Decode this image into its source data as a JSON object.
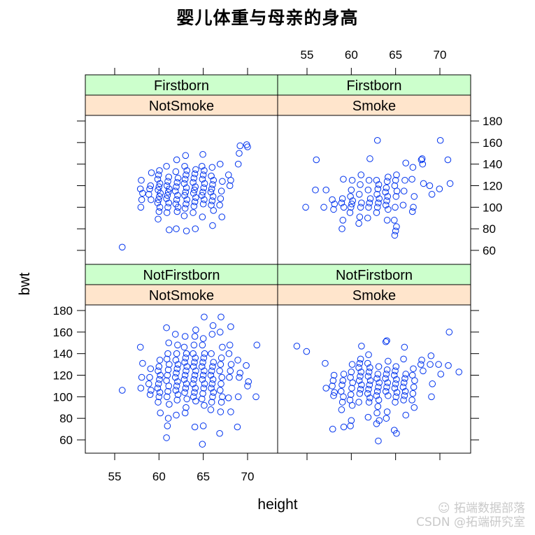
{
  "title": "婴儿体重与母亲的身高",
  "watermark": {
    "line1": "拓端数据部落",
    "line2": "CSDN @拓端研究室",
    "icon": "wechat-icon"
  },
  "colors": {
    "strip_outer": "#ccffcc",
    "strip_inner": "#ffe5cc",
    "points": "#0033ee",
    "frame": "#000000"
  },
  "chart_data": {
    "type": "scatter",
    "title": "婴儿体重与母亲的身高",
    "xlabel": "height",
    "ylabel": "bwt",
    "xlim": [
      52.3,
      74.0
    ],
    "ylim": [
      48,
      186
    ],
    "xticks": [
      55,
      60,
      65,
      70
    ],
    "yticks": [
      60,
      80,
      100,
      120,
      140,
      160,
      180
    ],
    "xtick_labels": [
      "55",
      "60",
      "65",
      "70"
    ],
    "ytick_labels": [
      "60",
      "80",
      "100",
      "120",
      "140",
      "160",
      "180"
    ],
    "grid": false,
    "legend": null,
    "layout": "2x2 lattice (xyplot bwt ~ height | smoke * parity)",
    "panels": [
      {
        "position": "top-left",
        "strips": [
          "Firstborn",
          "NotSmoke"
        ],
        "points_x": [
          56,
          58,
          58,
          58,
          58,
          58,
          59,
          59,
          59,
          59,
          59,
          60,
          60,
          60,
          60,
          60,
          60,
          60,
          60,
          60,
          60,
          60,
          60,
          60,
          61,
          61,
          61,
          61,
          61,
          61,
          61,
          61,
          61,
          61,
          61,
          61,
          62,
          62,
          62,
          62,
          62,
          62,
          62,
          62,
          62,
          62,
          62,
          62,
          63,
          63,
          63,
          63,
          63,
          63,
          63,
          63,
          63,
          63,
          63,
          63,
          63,
          63,
          64,
          64,
          64,
          64,
          64,
          64,
          64,
          64,
          64,
          64,
          64,
          64,
          65,
          65,
          65,
          65,
          65,
          65,
          65,
          65,
          65,
          65,
          65,
          65,
          66,
          66,
          66,
          66,
          66,
          66,
          66,
          66,
          66,
          66,
          66,
          67,
          67,
          67,
          67,
          67,
          67,
          68,
          68,
          68,
          69,
          69,
          69,
          70,
          70
        ],
        "points_y": [
          63,
          100,
          107,
          113,
          117,
          125,
          107,
          112,
          117,
          120,
          132,
          89,
          96,
          100,
          104,
          107,
          110,
          113,
          116,
          119,
          122,
          126,
          130,
          134,
          79,
          95,
          100,
          104,
          108,
          111,
          114,
          117,
          120,
          124,
          128,
          138,
          80,
          96,
          100,
          103,
          107,
          111,
          115,
          119,
          123,
          127,
          133,
          144,
          78,
          92,
          99,
          103,
          107,
          111,
          114,
          118,
          122,
          126,
          130,
          134,
          138,
          148,
          80,
          95,
          101,
          105,
          109,
          113,
          116,
          119,
          123,
          127,
          131,
          135,
          91,
          103,
          107,
          111,
          114,
          118,
          122,
          126,
          130,
          134,
          138,
          149,
          83,
          97,
          102,
          106,
          110,
          114,
          117,
          121,
          125,
          129,
          137,
          91,
          102,
          108,
          115,
          124,
          140,
          120,
          125,
          130,
          140,
          150,
          157,
          158,
          156
        ],
        "note": "approximate values estimated from pixel positions"
      },
      {
        "position": "top-right",
        "strips": [
          "Firstborn",
          "Smoke"
        ],
        "points_x": [
          55,
          56,
          56,
          57,
          57,
          58,
          58,
          58,
          59,
          59,
          59,
          59,
          59,
          59,
          60,
          60,
          60,
          60,
          60,
          60,
          60,
          61,
          61,
          61,
          61,
          61,
          61,
          61,
          62,
          62,
          62,
          62,
          62,
          62,
          62,
          63,
          63,
          63,
          63,
          63,
          63,
          63,
          63,
          63,
          64,
          64,
          64,
          64,
          64,
          64,
          64,
          64,
          64,
          65,
          65,
          65,
          65,
          65,
          65,
          65,
          65,
          65,
          65,
          66,
          66,
          66,
          66,
          67,
          67,
          67,
          67,
          67,
          68,
          68,
          68,
          68,
          69,
          69,
          70,
          70,
          71,
          71
        ],
        "points_y": [
          100,
          116,
          144,
          116,
          100,
          98,
          103,
          107,
          80,
          88,
          100,
          104,
          108,
          126,
          95,
          100,
          103,
          106,
          110,
          116,
          125,
          85,
          91,
          100,
          104,
          112,
          121,
          130,
          90,
          100,
          104,
          108,
          116,
          125,
          145,
          95,
          100,
          104,
          108,
          112,
          117,
          121,
          125,
          162,
          88,
          98,
          102,
          106,
          110,
          114,
          118,
          124,
          128,
          74,
          78,
          82,
          88,
          100,
          110,
          115,
          120,
          125,
          130,
          102,
          115,
          125,
          141,
          96,
          100,
          110,
          126,
          137,
          140,
          122,
          144,
          145,
          112,
          120,
          117,
          162,
          122,
          144
        ],
        "note": "approximate values estimated from pixel positions"
      },
      {
        "position": "bottom-left",
        "strips": [
          "NotFirstborn",
          "NotSmoke"
        ],
        "points_x": [
          56,
          58,
          58,
          58,
          58,
          59,
          59,
          59,
          59,
          59,
          60,
          60,
          60,
          60,
          60,
          60,
          60,
          60,
          60,
          60,
          60,
          61,
          61,
          61,
          61,
          61,
          61,
          61,
          61,
          61,
          61,
          61,
          61,
          61,
          61,
          61,
          62,
          62,
          62,
          62,
          62,
          62,
          62,
          62,
          62,
          62,
          62,
          62,
          62,
          62,
          63,
          63,
          63,
          63,
          63,
          63,
          63,
          63,
          63,
          63,
          63,
          63,
          63,
          63,
          63,
          64,
          64,
          64,
          64,
          64,
          64,
          64,
          64,
          64,
          64,
          64,
          64,
          64,
          64,
          64,
          64,
          65,
          65,
          65,
          65,
          65,
          65,
          65,
          65,
          65,
          65,
          65,
          65,
          65,
          65,
          65,
          65,
          65,
          66,
          66,
          66,
          66,
          66,
          66,
          66,
          66,
          66,
          66,
          66,
          66,
          66,
          66,
          67,
          67,
          67,
          67,
          67,
          67,
          67,
          67,
          67,
          67,
          67,
          67,
          67,
          68,
          68,
          68,
          68,
          68,
          68,
          68,
          68,
          69,
          69,
          69,
          69,
          69,
          70,
          70,
          70,
          71,
          71
        ],
        "points_y": [
          106,
          108,
          118,
          131,
          146,
          102,
          106,
          112,
          118,
          126,
          85,
          95,
          100,
          104,
          108,
          112,
          116,
          120,
          124,
          128,
          134,
          62,
          73,
          80,
          93,
          100,
          105,
          110,
          115,
          120,
          125,
          130,
          135,
          140,
          150,
          164,
          83,
          97,
          102,
          106,
          110,
          114,
          118,
          122,
          126,
          130,
          134,
          140,
          148,
          158,
          85,
          90,
          98,
          104,
          108,
          112,
          116,
          120,
          124,
          128,
          132,
          136,
          140,
          146,
          156,
          72,
          96,
          100,
          104,
          108,
          112,
          116,
          120,
          124,
          128,
          132,
          136,
          140,
          148,
          156,
          162,
          56,
          73,
          92,
          98,
          103,
          108,
          112,
          116,
          120,
          124,
          128,
          132,
          136,
          140,
          148,
          154,
          174,
          88,
          95,
          100,
          104,
          108,
          112,
          116,
          120,
          124,
          128,
          132,
          140,
          158,
          166,
          66,
          86,
          95,
          100,
          106,
          112,
          118,
          124,
          130,
          136,
          146,
          160,
          174,
          86,
          99,
          118,
          124,
          130,
          140,
          148,
          165,
          72,
          100,
          118,
          122,
          134,
          110,
          114,
          129,
          100,
          148
        ],
        "note": "approximate values estimated from pixel positions"
      },
      {
        "position": "bottom-right",
        "strips": [
          "NotFirstborn",
          "Smoke"
        ],
        "points_x": [
          54,
          55,
          57,
          57,
          58,
          58,
          58,
          58,
          58,
          58,
          59,
          59,
          59,
          59,
          59,
          59,
          59,
          59,
          60,
          60,
          60,
          60,
          60,
          60,
          60,
          60,
          60,
          60,
          61,
          61,
          61,
          61,
          61,
          61,
          61,
          61,
          61,
          61,
          61,
          62,
          62,
          62,
          62,
          62,
          62,
          62,
          62,
          62,
          62,
          62,
          62,
          63,
          63,
          63,
          63,
          63,
          63,
          63,
          63,
          63,
          63,
          63,
          63,
          63,
          64,
          64,
          64,
          64,
          64,
          64,
          64,
          64,
          64,
          64,
          64,
          64,
          65,
          65,
          65,
          65,
          65,
          65,
          65,
          65,
          65,
          65,
          65,
          66,
          66,
          66,
          66,
          66,
          66,
          66,
          66,
          66,
          66,
          67,
          67,
          67,
          67,
          67,
          67,
          67,
          68,
          68,
          68,
          69,
          69,
          69,
          69,
          70,
          70,
          71,
          71,
          72
        ],
        "points_y": [
          147,
          142,
          131,
          108,
          70,
          101,
          104,
          110,
          115,
          120,
          72,
          88,
          95,
          100,
          105,
          111,
          115,
          121,
          73,
          78,
          92,
          97,
          102,
          108,
          113,
          118,
          123,
          130,
          95,
          103,
          107,
          111,
          115,
          119,
          123,
          127,
          131,
          135,
          147,
          81,
          95,
          99,
          103,
          107,
          111,
          115,
          119,
          123,
          127,
          131,
          139,
          59,
          78,
          85,
          91,
          97,
          101,
          105,
          109,
          113,
          117,
          121,
          128,
          75,
          80,
          86,
          101,
          105,
          109,
          113,
          117,
          121,
          125,
          133,
          151,
          152,
          66,
          69,
          95,
          100,
          104,
          108,
          112,
          116,
          120,
          124,
          128,
          83,
          97,
          101,
          105,
          109,
          113,
          117,
          121,
          135,
          146,
          90,
          97,
          103,
          109,
          115,
          120,
          126,
          124,
          130,
          134,
          100,
          112,
          130,
          138,
          121,
          130,
          129,
          160,
          123
        ],
        "note": "approximate values estimated from pixel positions"
      }
    ]
  }
}
